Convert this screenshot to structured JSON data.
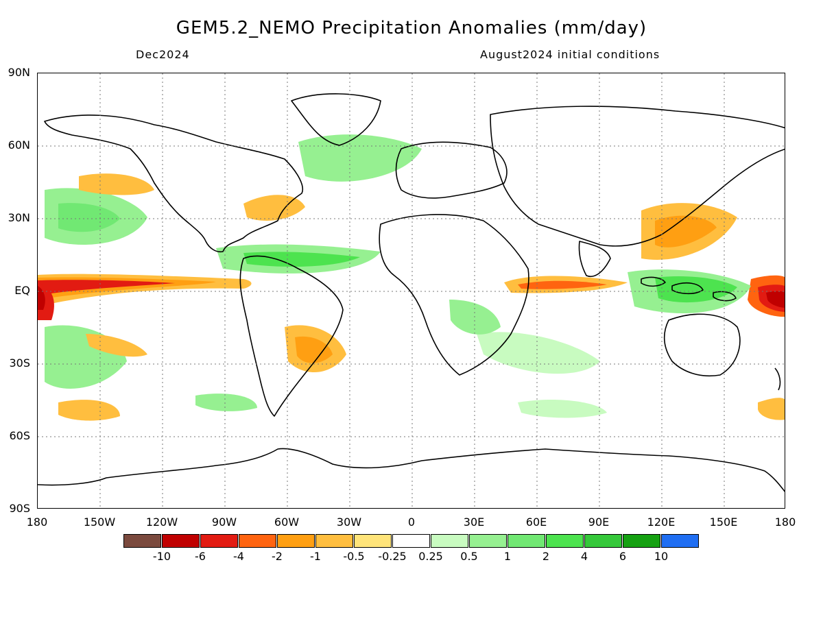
{
  "header": {
    "title": "GEM5.2_NEMO Precipitation Anomalies (mm/day)",
    "valid_month": "Dec2024",
    "initial_conditions": "August2024 initial conditions"
  },
  "axes": {
    "lat_labels": [
      "90N",
      "60N",
      "30N",
      "EQ",
      "30S",
      "60S",
      "90S"
    ],
    "lon_labels": [
      "180",
      "150W",
      "120W",
      "90W",
      "60W",
      "30W",
      "0",
      "30E",
      "60E",
      "90E",
      "120E",
      "150E",
      "180"
    ]
  },
  "legend": {
    "colors": [
      "#7b4a3e",
      "#c00000",
      "#e21b12",
      "#ff6410",
      "#ff9f12",
      "#ffbe3f",
      "#ffe47a",
      "#ffffff",
      "#c8fbc0",
      "#96f091",
      "#71e873",
      "#4de34f",
      "#35c83a",
      "#15a112",
      "#1f6ef2"
    ],
    "ticks": [
      "-10",
      "-6",
      "-4",
      "-2",
      "-1",
      "-0.5",
      "-0.25",
      "0.25",
      "0.5",
      "1",
      "2",
      "4",
      "6",
      "10"
    ]
  },
  "anomaly_regions": [
    {
      "name": "Central-east Pacific dry belt",
      "lon": [
        -180,
        -75
      ],
      "lat": [
        -5,
        5
      ],
      "value": -4
    },
    {
      "name": "West Pacific dry maximum",
      "lon": [
        160,
        180
      ],
      "lat": [
        -8,
        4
      ],
      "value": -6
    },
    {
      "name": "Western Indian Ocean dry band",
      "lon": [
        45,
        95
      ],
      "lat": [
        -2,
        4
      ],
      "value": -2
    },
    {
      "name": "North Pacific wet region",
      "lon": [
        -170,
        -130
      ],
      "lat": [
        15,
        35
      ],
      "value": 1
    },
    {
      "name": "Tropical Atlantic wet band",
      "lon": [
        -60,
        -20
      ],
      "lat": [
        5,
        15
      ],
      "value": 2
    },
    {
      "name": "Maritime Continent wet region",
      "lon": [
        95,
        150
      ],
      "lat": [
        -10,
        10
      ],
      "value": 2
    }
  ]
}
